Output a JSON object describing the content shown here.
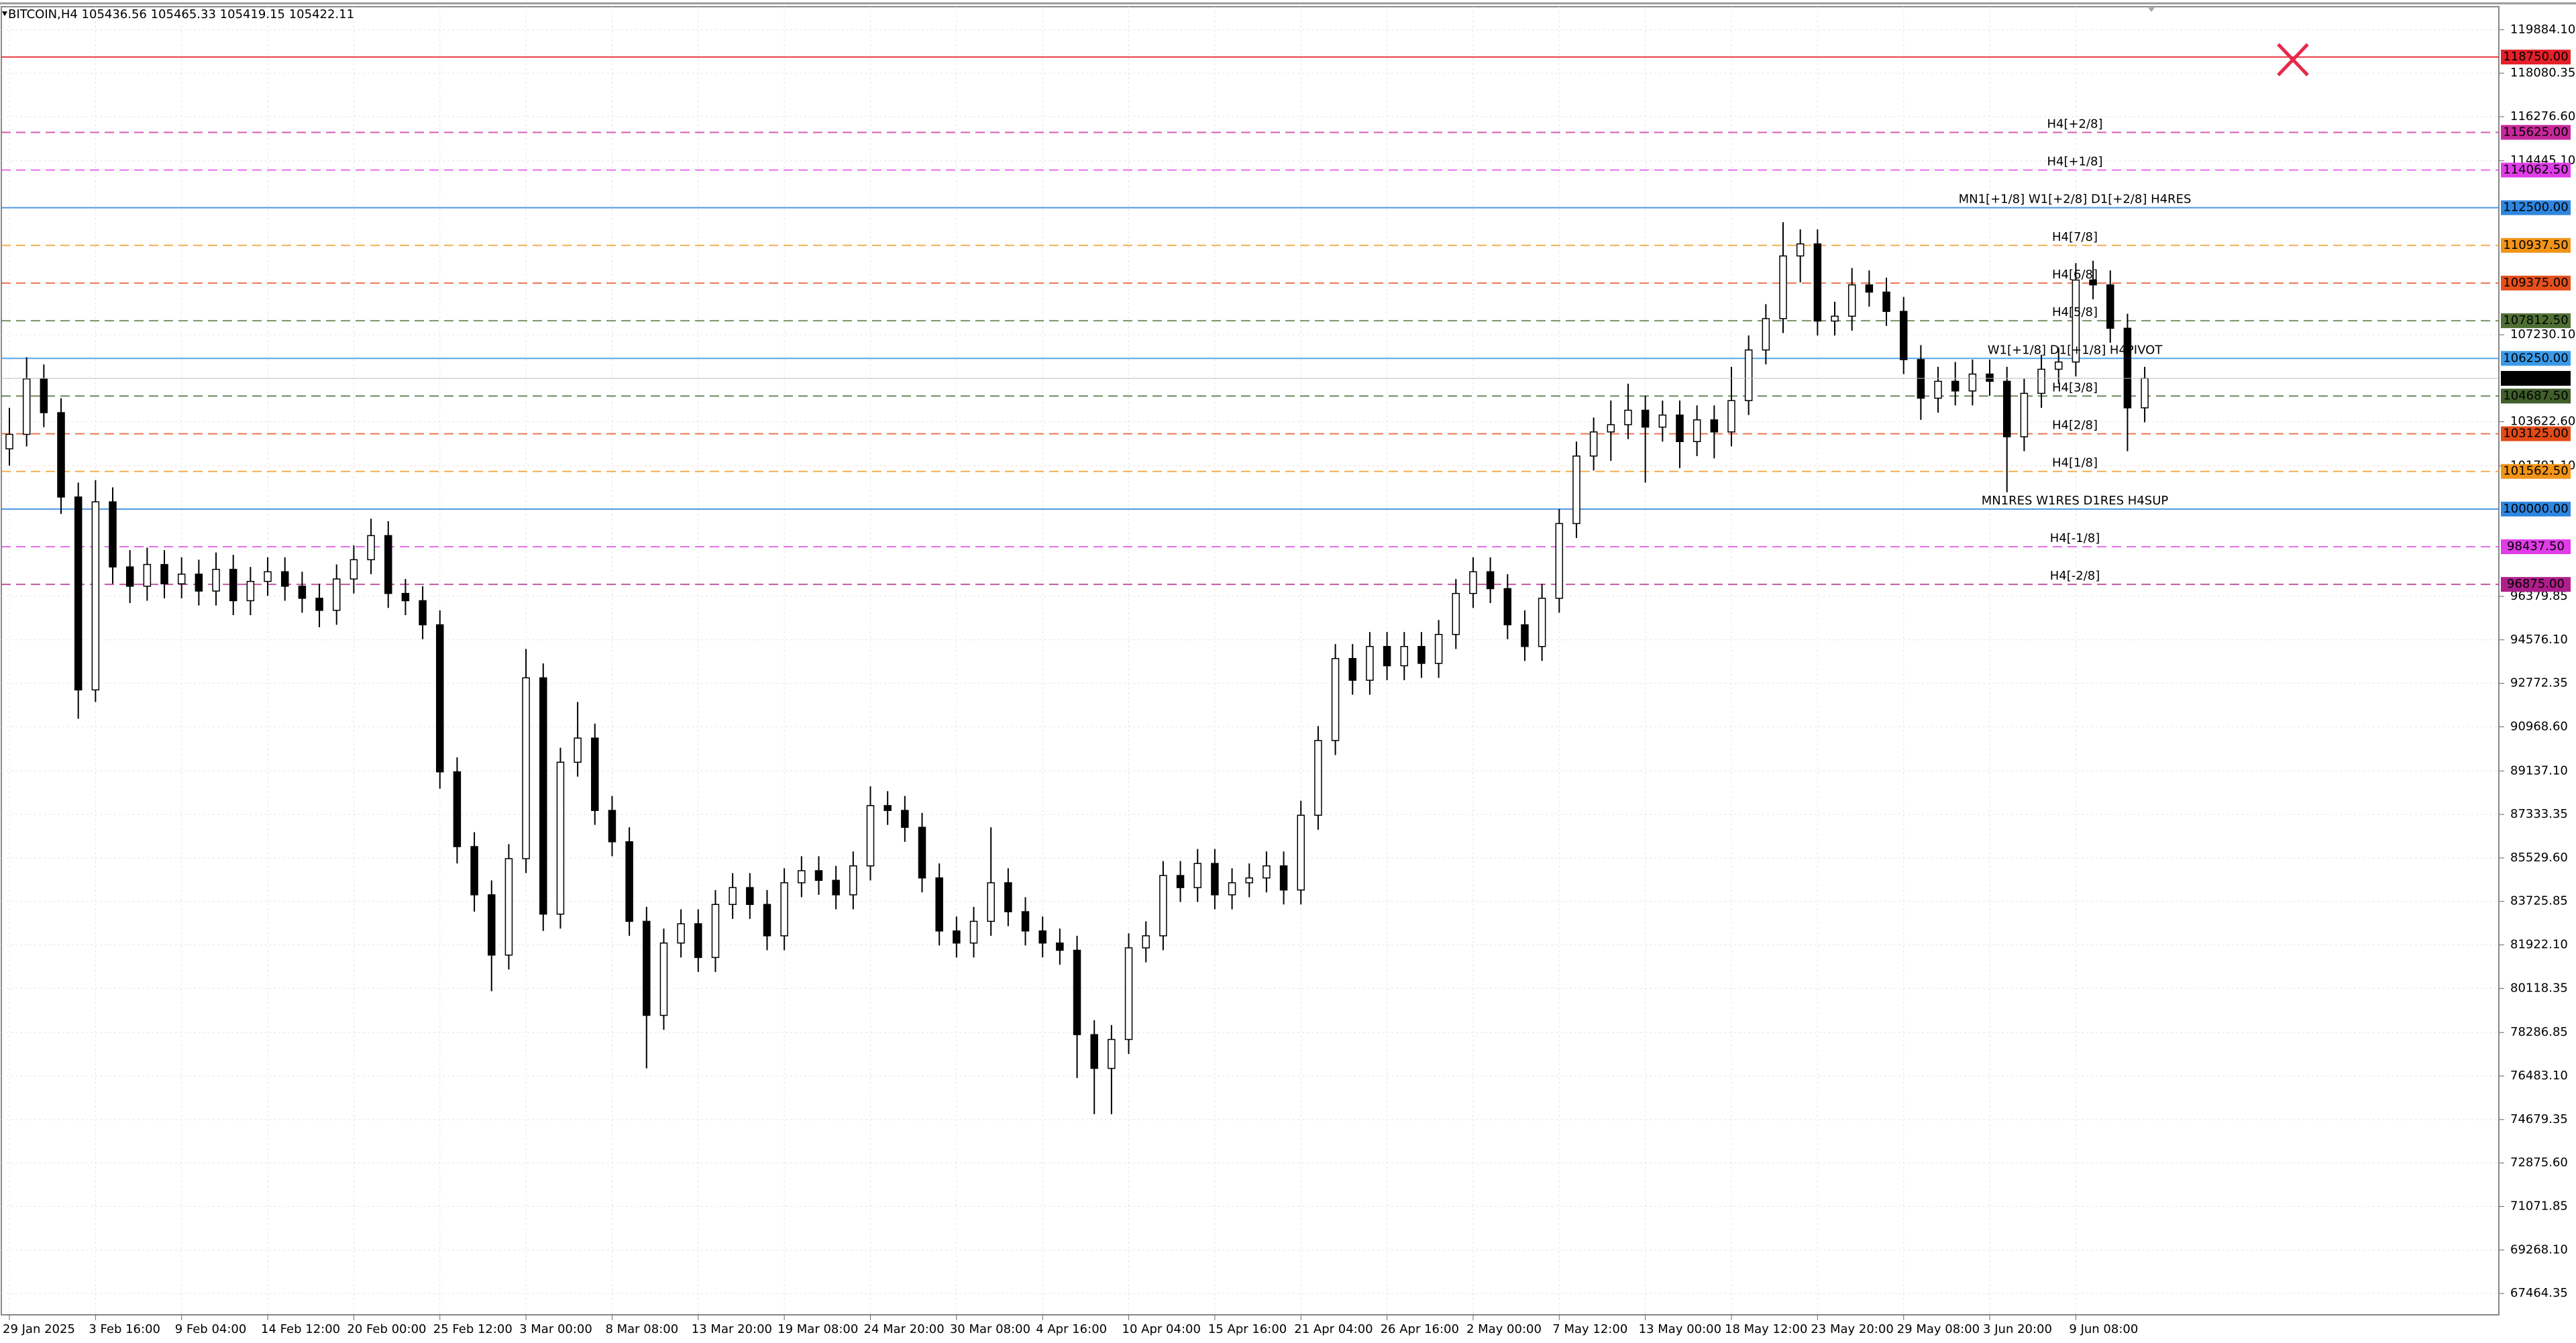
{
  "chart_data": {
    "type": "candlestick",
    "title": "BITCOIN,H4  105436.56 105465.33 105419.15 105422.11",
    "categories": [
      "29 Jan 2025",
      null,
      null,
      null,
      null,
      "3 Feb 16:00",
      null,
      null,
      null,
      null,
      "9 Feb 04:00",
      null,
      null,
      null,
      null,
      "14 Feb 12:00",
      null,
      null,
      null,
      null,
      "20 Feb 00:00",
      null,
      null,
      null,
      null,
      "25 Feb 12:00",
      null,
      null,
      null,
      null,
      "3 Mar 00:00",
      null,
      null,
      null,
      null,
      "8 Mar 08:00",
      null,
      null,
      null,
      null,
      "13 Mar 20:00",
      null,
      null,
      null,
      null,
      "19 Mar 08:00",
      null,
      null,
      null,
      null,
      "24 Mar 20:00",
      null,
      null,
      null,
      null,
      "30 Mar 08:00",
      null,
      null,
      null,
      null,
      "4 Apr 16:00",
      null,
      null,
      null,
      null,
      "10 Apr 04:00",
      null,
      null,
      null,
      null,
      "15 Apr 16:00",
      null,
      null,
      null,
      null,
      "21 Apr 04:00",
      null,
      null,
      null,
      null,
      "26 Apr 16:00",
      null,
      null,
      null,
      null,
      "2 May 00:00",
      null,
      null,
      null,
      null,
      "7 May 12:00",
      null,
      null,
      null,
      null,
      "13 May 00:00",
      null,
      null,
      null,
      null,
      "18 May 12:00",
      null,
      null,
      null,
      null,
      "23 May 20:00",
      null,
      null,
      null,
      null,
      "29 May 08:00",
      null,
      null,
      null,
      null,
      "3 Jun 20:00",
      null,
      null,
      null,
      null,
      "9 Jun 08:00",
      null,
      null,
      null,
      null
    ],
    "open": [
      102500,
      103100,
      105400,
      104000,
      100500,
      92500,
      100300,
      97600,
      96800,
      97700,
      96900,
      97300,
      96600,
      97500,
      96200,
      97000,
      97400,
      96800,
      96300,
      95800,
      97100,
      97900,
      98900,
      96500,
      96200,
      95200,
      89100,
      86000,
      84000,
      81500,
      85500,
      93000,
      83200,
      89500,
      90500,
      87500,
      86200,
      82900,
      79000,
      82000,
      82800,
      81400,
      83600,
      84300,
      83600,
      82300,
      84500,
      85000,
      84600,
      84000,
      85200,
      87700,
      87500,
      86800,
      84700,
      82500,
      82000,
      82900,
      84500,
      83300,
      82500,
      82000,
      81700,
      78200,
      76800,
      78000,
      81800,
      82300,
      84800,
      84300,
      85300,
      84000,
      84500,
      84700,
      85200,
      84200,
      87300,
      90400,
      93800,
      92900,
      94300,
      93500,
      94300,
      93600,
      94800,
      96500,
      97400,
      96700,
      95200,
      94300,
      96300,
      99400,
      102200,
      103200,
      103500,
      104100,
      103400,
      103900,
      102800,
      103700,
      103200,
      104500,
      106600,
      107900,
      110500,
      111000,
      107800,
      108000,
      109300,
      109000,
      108200,
      106200,
      104600,
      105300,
      104900,
      105600,
      105300,
      103000,
      104800,
      105800,
      106100,
      109500,
      109300,
      107500,
      104200
    ],
    "high": [
      104200,
      106300,
      106000,
      104600,
      101100,
      101200,
      100900,
      98300,
      98400,
      98300,
      98000,
      97900,
      98200,
      98100,
      97600,
      98000,
      98000,
      97400,
      96900,
      97700,
      98500,
      99600,
      99500,
      97100,
      96800,
      95800,
      89700,
      86600,
      84600,
      86100,
      94200,
      93600,
      90100,
      92000,
      91100,
      88100,
      86800,
      83500,
      82600,
      83400,
      83400,
      84200,
      84900,
      84900,
      84200,
      85100,
      85600,
      85600,
      85200,
      85800,
      88500,
      88300,
      88100,
      87400,
      85300,
      83100,
      83500,
      86800,
      85100,
      83900,
      83100,
      82600,
      82300,
      78800,
      78600,
      82400,
      82900,
      85400,
      85400,
      85900,
      85900,
      85100,
      85300,
      85800,
      85800,
      87900,
      91000,
      94400,
      94400,
      94900,
      94900,
      94900,
      94900,
      95400,
      97100,
      98000,
      98000,
      97300,
      95800,
      96900,
      100000,
      102800,
      103800,
      104500,
      105200,
      104700,
      104500,
      104500,
      104300,
      104300,
      105900,
      107200,
      108500,
      111900,
      111600,
      111600,
      108600,
      110000,
      109900,
      109600,
      108800,
      106800,
      105900,
      106100,
      106200,
      106200,
      105900,
      105400,
      106400,
      106700,
      110200,
      110300,
      109900,
      108100,
      105900
    ],
    "low": [
      101800,
      102600,
      103400,
      99800,
      91300,
      92000,
      96900,
      96100,
      96200,
      96300,
      96300,
      96000,
      96000,
      95600,
      95600,
      96400,
      96200,
      95700,
      95100,
      95200,
      96500,
      97300,
      95900,
      95600,
      94600,
      88400,
      85300,
      83300,
      80000,
      80900,
      84900,
      82500,
      82600,
      88900,
      86900,
      85600,
      82300,
      76800,
      78400,
      81400,
      80800,
      80800,
      83000,
      83000,
      81700,
      81700,
      83900,
      84000,
      83400,
      83400,
      84600,
      86900,
      86200,
      84100,
      81900,
      81400,
      81400,
      82300,
      82700,
      81900,
      81400,
      81100,
      76400,
      74900,
      74900,
      77400,
      81200,
      81700,
      83700,
      83700,
      83400,
      83400,
      83900,
      84100,
      83600,
      83600,
      86700,
      89800,
      92300,
      92300,
      92900,
      92900,
      93000,
      93000,
      94200,
      95900,
      96100,
      94600,
      93700,
      93700,
      95700,
      98800,
      101600,
      102000,
      102900,
      101100,
      102800,
      101700,
      102200,
      102100,
      102600,
      103900,
      106000,
      107300,
      109400,
      107200,
      107200,
      107400,
      108400,
      107600,
      105600,
      103700,
      104000,
      104300,
      104300,
      104700,
      100700,
      102400,
      104200,
      105200,
      105500,
      108700,
      106900,
      102400,
      103600
    ],
    "close": [
      103100,
      105400,
      104000,
      100500,
      92500,
      100300,
      97600,
      96800,
      97700,
      96900,
      97300,
      96600,
      97500,
      96200,
      97000,
      97400,
      96800,
      96300,
      95800,
      97100,
      97900,
      98900,
      96500,
      96200,
      95200,
      89100,
      86000,
      84000,
      81500,
      85500,
      93000,
      83200,
      89500,
      90500,
      87500,
      86200,
      82900,
      79000,
      82000,
      82800,
      81400,
      83600,
      84300,
      83600,
      82300,
      84500,
      85000,
      84600,
      84000,
      85200,
      87700,
      87500,
      86800,
      84700,
      82500,
      82000,
      82900,
      84500,
      83300,
      82500,
      82000,
      81700,
      78200,
      76800,
      78000,
      81800,
      82300,
      84800,
      84300,
      85300,
      84000,
      84500,
      84700,
      85200,
      84200,
      87300,
      90400,
      93800,
      92900,
      94300,
      93500,
      94300,
      93600,
      94800,
      96500,
      97400,
      96700,
      95200,
      94300,
      96300,
      99400,
      102200,
      103200,
      103500,
      104100,
      103400,
      103900,
      102800,
      103700,
      103200,
      104500,
      106600,
      107900,
      110500,
      111000,
      107800,
      108000,
      109300,
      109000,
      108200,
      106200,
      104600,
      105300,
      104900,
      105600,
      105300,
      103000,
      104800,
      105800,
      106100,
      109500,
      109300,
      107500,
      104200,
      105422.11
    ],
    "ylim": [
      66578,
      120838
    ],
    "yticks": [
      {
        "value": 119884.1,
        "label": "119884.10"
      },
      {
        "value": 118080.35,
        "label": "118080.35"
      },
      {
        "value": 116276.6,
        "label": "116276.60"
      },
      {
        "value": 114445.1,
        "label": "114445.10"
      },
      {
        "value": 107230.1,
        "label": "107230.10"
      },
      {
        "value": 103622.6,
        "label": "103622.60"
      },
      {
        "value": 101791.1,
        "label": "101791.10"
      },
      {
        "value": 96379.85,
        "label": "96379.85"
      },
      {
        "value": 94576.1,
        "label": "94576.10"
      },
      {
        "value": 92772.35,
        "label": "92772.35"
      },
      {
        "value": 90968.6,
        "label": "90968.60"
      },
      {
        "value": 89137.1,
        "label": "89137.10"
      },
      {
        "value": 87333.35,
        "label": "87333.35"
      },
      {
        "value": 85529.6,
        "label": "85529.60"
      },
      {
        "value": 83725.85,
        "label": "83725.85"
      },
      {
        "value": 81922.1,
        "label": "81922.10"
      },
      {
        "value": 80118.35,
        "label": "80118.35"
      },
      {
        "value": 78286.85,
        "label": "78286.85"
      },
      {
        "value": 76483.1,
        "label": "76483.10"
      },
      {
        "value": 74679.35,
        "label": "74679.35"
      },
      {
        "value": 72875.6,
        "label": "72875.60"
      },
      {
        "value": 71071.85,
        "label": "71071.85"
      },
      {
        "value": 69268.1,
        "label": "69268.10"
      },
      {
        "value": 67464.35,
        "label": "67464.35"
      }
    ],
    "grid": true,
    "levels": [
      {
        "value": 118750,
        "label": "118750.00",
        "color": "#e4202a",
        "style": "solid"
      },
      {
        "value": 115625,
        "label": "115625.00",
        "name": "H4[+2/8]",
        "color": "#c8289c",
        "style": "dashed"
      },
      {
        "value": 114062.5,
        "label": "114062.50",
        "name": "H4[+1/8]",
        "color": "#e03ce8",
        "style": "dashed"
      },
      {
        "value": 112500,
        "label": "112500.00",
        "name": "MN1[+1/8] W1[+2/8] D1[+2/8] H4RES",
        "color": "#2f86e0",
        "style": "solid"
      },
      {
        "value": 110937.5,
        "label": "110937.50",
        "name": "H4[7/8]",
        "color": "#f29418",
        "style": "dashed"
      },
      {
        "value": 109375,
        "label": "109375.00",
        "name": "H4[6/8]",
        "color": "#e4501c",
        "style": "dashed"
      },
      {
        "value": 107812.5,
        "label": "107812.50",
        "name": "H4[5/8]",
        "color": "#4f6f33",
        "style": "dashed"
      },
      {
        "value": 106250,
        "label": "106250.00",
        "name": "W1[+1/8] D1[+1/8] H4PIVOT",
        "color": "#3a9ae8",
        "style": "solid"
      },
      {
        "value": 104687.5,
        "label": "104687.50",
        "name": "H4[3/8]",
        "color": "#3f5e2a",
        "style": "dashed"
      },
      {
        "value": 103125,
        "label": "103125.00",
        "name": "H4[2/8]",
        "color": "#e24a16",
        "style": "dashed"
      },
      {
        "value": 101562.5,
        "label": "101562.50",
        "name": "H4[1/8]",
        "color": "#f29418",
        "style": "dashed"
      },
      {
        "value": 100000,
        "label": "100000.00",
        "name": "MN1RES W1RES D1RES H4SUP",
        "color": "#2f86e0",
        "style": "solid"
      },
      {
        "value": 98437.5,
        "label": "98437.50",
        "name": "H4[-1/8]",
        "color": "#e03ce8",
        "style": "dashed"
      },
      {
        "value": 96875,
        "label": "96875.00",
        "name": "H4[-2/8]",
        "color": "#b01e8c",
        "style": "dashed"
      }
    ]
  }
}
